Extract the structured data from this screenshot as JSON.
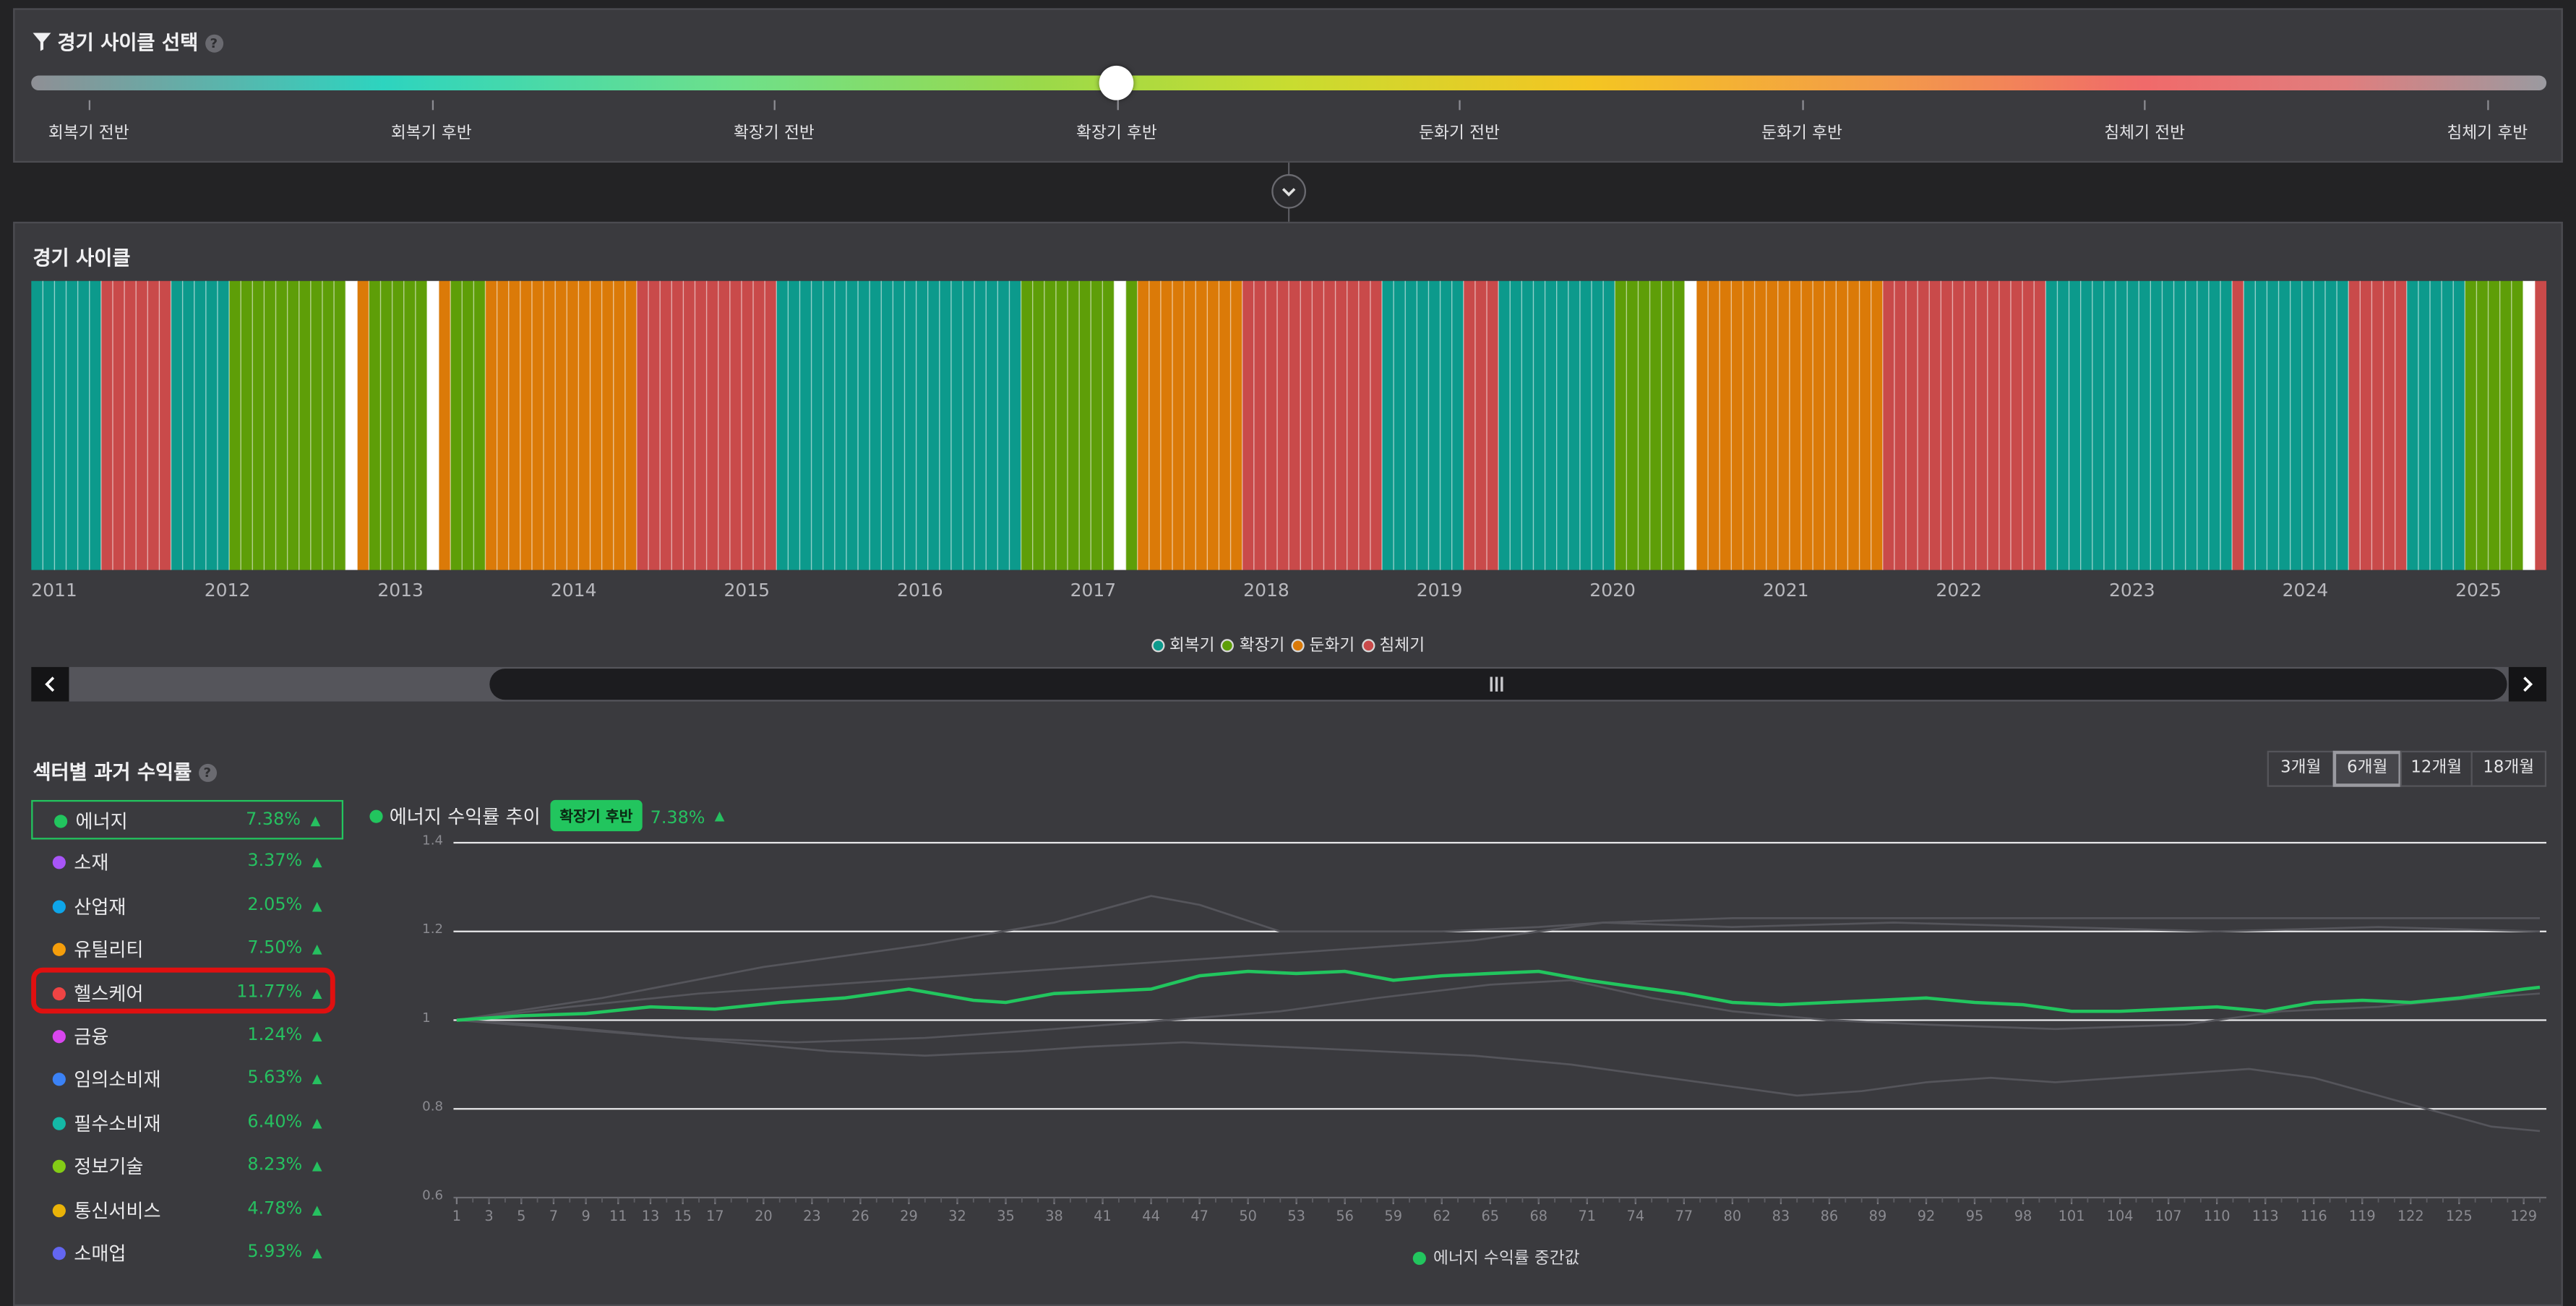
{
  "selector": {
    "title": "경기 사이클 선택",
    "help_icon": "question-circle-icon",
    "phases": [
      "회복기 전반",
      "회복기 후반",
      "확장기 전반",
      "확장기 후반",
      "둔화기 전반",
      "둔화기 후반",
      "침체기 전반",
      "침체기 후반"
    ],
    "selected_index": 3,
    "expand_icon": "chevron-down-icon"
  },
  "cycle": {
    "title": "경기 사이클",
    "years": [
      "2011",
      "2012",
      "2013",
      "2014",
      "2015",
      "2016",
      "2017",
      "2018",
      "2019",
      "2020",
      "2021",
      "2022",
      "2023",
      "2024",
      "2025"
    ],
    "legend": [
      {
        "key": "r",
        "label": "회복기"
      },
      {
        "key": "e",
        "label": "확장기"
      },
      {
        "key": "s",
        "label": "둔화기"
      },
      {
        "key": "c",
        "label": "침체기"
      }
    ],
    "colors": {
      "r": "#0c9a8c",
      "e": "#5e9e08",
      "s": "#db7a08",
      "c": "#c94a4a",
      "w": "#ffffff"
    },
    "sequence": "rrrrrrccccccrrrrreeeeeeeeeewseeeeewseeesssssssssssssccccccccccccrrrrrrrrrrrrrrrrrrrrreeeeeeeewesssssssssccccccccccccrrrrrrrcccrrrrrrrrrreeeeeewssssssssssssssssccccccccccccccrrrrrrrrrrrrrrrrcrrrrrrrrrcccccrrrrreeeeewc",
    "scroll_left_icon": "chevron-left-icon",
    "scroll_right_icon": "chevron-right-icon",
    "scroll_handle_icon": "grip-icon"
  },
  "sectors": {
    "title": "섹터별 과거 수익률",
    "selected_index": 0,
    "items": [
      {
        "name": "에너지",
        "pct": "7.38%",
        "color": "#22c55e"
      },
      {
        "name": "소재",
        "pct": "3.37%",
        "color": "#a855f7"
      },
      {
        "name": "산업재",
        "pct": "2.05%",
        "color": "#0ea5e9"
      },
      {
        "name": "유틸리티",
        "pct": "7.50%",
        "color": "#f59e0b"
      },
      {
        "name": "헬스케어",
        "pct": "11.77%",
        "color": "#ef4444"
      },
      {
        "name": "금융",
        "pct": "1.24%",
        "color": "#d946ef"
      },
      {
        "name": "임의소비재",
        "pct": "5.63%",
        "color": "#3b82f6"
      },
      {
        "name": "필수소비재",
        "pct": "6.40%",
        "color": "#14b8a6"
      },
      {
        "name": "정보기술",
        "pct": "8.23%",
        "color": "#84cc16"
      },
      {
        "name": "통신서비스",
        "pct": "4.78%",
        "color": "#eab308"
      },
      {
        "name": "소매업",
        "pct": "5.93%",
        "color": "#6366f1"
      }
    ],
    "highlight_index": 4
  },
  "periods": {
    "options": [
      "3개월",
      "6개월",
      "12개월",
      "18개월"
    ],
    "active_index": 1
  },
  "chart_header": {
    "title": "에너지 수익률 추이",
    "badge": "확장기 후반",
    "pct": "7.38%"
  },
  "chart_data": {
    "type": "line",
    "ylim": [
      0.6,
      1.4
    ],
    "yticks": [
      "1.4",
      "1.2",
      "1",
      "0.8",
      "0.6"
    ],
    "xticks": [
      "1",
      "3",
      "5",
      "7",
      "9",
      "11",
      "13",
      "15",
      "17",
      "20",
      "23",
      "26",
      "29",
      "32",
      "35",
      "38",
      "41",
      "44",
      "47",
      "50",
      "53",
      "56",
      "59",
      "62",
      "65",
      "68",
      "71",
      "74",
      "77",
      "80",
      "83",
      "86",
      "89",
      "92",
      "95",
      "98",
      "101",
      "104",
      "107",
      "110",
      "113",
      "116",
      "119",
      "122",
      "125",
      "129"
    ],
    "x_max": 130,
    "legend": "에너지 수익률 중간값",
    "series": [
      {
        "name": "에너지 수익률 중간값",
        "color": "#22c55e",
        "points": [
          [
            1,
            1.0
          ],
          [
            5,
            1.01
          ],
          [
            9,
            1.015
          ],
          [
            13,
            1.03
          ],
          [
            17,
            1.025
          ],
          [
            21,
            1.04
          ],
          [
            25,
            1.05
          ],
          [
            29,
            1.07
          ],
          [
            33,
            1.045
          ],
          [
            35,
            1.04
          ],
          [
            38,
            1.06
          ],
          [
            41,
            1.065
          ],
          [
            44,
            1.07
          ],
          [
            47,
            1.1
          ],
          [
            50,
            1.11
          ],
          [
            53,
            1.105
          ],
          [
            56,
            1.11
          ],
          [
            59,
            1.09
          ],
          [
            62,
            1.1
          ],
          [
            65,
            1.105
          ],
          [
            68,
            1.11
          ],
          [
            71,
            1.09
          ],
          [
            74,
            1.075
          ],
          [
            77,
            1.06
          ],
          [
            80,
            1.04
          ],
          [
            83,
            1.035
          ],
          [
            86,
            1.04
          ],
          [
            89,
            1.045
          ],
          [
            92,
            1.05
          ],
          [
            95,
            1.04
          ],
          [
            98,
            1.035
          ],
          [
            101,
            1.02
          ],
          [
            104,
            1.02
          ],
          [
            107,
            1.025
          ],
          [
            110,
            1.03
          ],
          [
            113,
            1.02
          ],
          [
            116,
            1.04
          ],
          [
            119,
            1.045
          ],
          [
            122,
            1.04
          ],
          [
            125,
            1.05
          ],
          [
            129,
            1.07
          ],
          [
            130,
            1.074
          ]
        ]
      },
      {
        "points": [
          [
            1,
            1.0
          ],
          [
            10,
            1.05
          ],
          [
            20,
            1.12
          ],
          [
            30,
            1.17
          ],
          [
            38,
            1.22
          ],
          [
            44,
            1.28
          ],
          [
            47,
            1.26
          ],
          [
            52,
            1.2
          ],
          [
            58,
            1.2
          ],
          [
            62,
            1.2
          ],
          [
            68,
            1.21
          ],
          [
            72,
            1.22
          ],
          [
            80,
            1.21
          ],
          [
            90,
            1.22
          ],
          [
            100,
            1.21
          ],
          [
            110,
            1.2
          ],
          [
            120,
            1.21
          ],
          [
            130,
            1.2
          ]
        ]
      },
      {
        "points": [
          [
            1,
            1.0
          ],
          [
            8,
            0.98
          ],
          [
            15,
            0.96
          ],
          [
            22,
            0.95
          ],
          [
            30,
            0.96
          ],
          [
            38,
            0.98
          ],
          [
            45,
            1.0
          ],
          [
            52,
            1.02
          ],
          [
            58,
            1.05
          ],
          [
            65,
            1.08
          ],
          [
            70,
            1.09
          ],
          [
            75,
            1.05
          ],
          [
            80,
            1.02
          ],
          [
            86,
            1.0
          ],
          [
            92,
            0.99
          ],
          [
            100,
            0.98
          ],
          [
            108,
            0.99
          ],
          [
            114,
            1.02
          ],
          [
            120,
            1.03
          ],
          [
            126,
            1.05
          ],
          [
            130,
            1.06
          ]
        ]
      },
      {
        "points": [
          [
            1,
            1.0
          ],
          [
            6,
            0.99
          ],
          [
            12,
            0.97
          ],
          [
            18,
            0.95
          ],
          [
            24,
            0.93
          ],
          [
            30,
            0.92
          ],
          [
            36,
            0.93
          ],
          [
            40,
            0.94
          ],
          [
            46,
            0.95
          ],
          [
            52,
            0.94
          ],
          [
            58,
            0.93
          ],
          [
            64,
            0.92
          ],
          [
            70,
            0.9
          ],
          [
            76,
            0.87
          ],
          [
            80,
            0.85
          ],
          [
            84,
            0.83
          ],
          [
            88,
            0.84
          ],
          [
            92,
            0.86
          ],
          [
            96,
            0.87
          ],
          [
            100,
            0.86
          ],
          [
            104,
            0.87
          ],
          [
            108,
            0.88
          ],
          [
            112,
            0.89
          ],
          [
            116,
            0.87
          ],
          [
            120,
            0.83
          ],
          [
            124,
            0.79
          ],
          [
            127,
            0.76
          ],
          [
            130,
            0.75
          ]
        ]
      },
      {
        "points": [
          [
            1,
            1.0
          ],
          [
            8,
            1.03
          ],
          [
            16,
            1.06
          ],
          [
            24,
            1.08
          ],
          [
            32,
            1.1
          ],
          [
            40,
            1.12
          ],
          [
            48,
            1.14
          ],
          [
            56,
            1.16
          ],
          [
            64,
            1.18
          ],
          [
            68,
            1.2
          ],
          [
            72,
            1.22
          ],
          [
            80,
            1.23
          ],
          [
            90,
            1.23
          ],
          [
            100,
            1.23
          ],
          [
            110,
            1.23
          ],
          [
            120,
            1.23
          ],
          [
            130,
            1.23
          ]
        ]
      }
    ]
  }
}
